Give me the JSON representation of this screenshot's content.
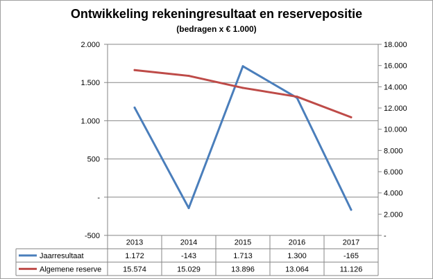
{
  "chart_data": {
    "type": "line",
    "title": "Ontwikkeling rekeningresultaat en reservepositie",
    "subtitle": "(bedragen x € 1.000)",
    "categories": [
      "2013",
      "2014",
      "2015",
      "2016",
      "2017"
    ],
    "series": [
      {
        "name": "Jaarresultaat",
        "axis": "left",
        "color": "#4a7ebb",
        "values": [
          1172,
          -143,
          1713,
          1300,
          -165
        ],
        "labels": [
          "1.172",
          "-143",
          "1.713",
          "1.300",
          "-165"
        ]
      },
      {
        "name": "Algemene reserve",
        "axis": "right",
        "color": "#be4b48",
        "values": [
          15574,
          15029,
          13896,
          13064,
          11126
        ],
        "labels": [
          "15.574",
          "15.029",
          "13.896",
          "13.064",
          "11.126"
        ]
      }
    ],
    "y_left": {
      "range": [
        -500,
        2000
      ],
      "ticks": [
        2000,
        1500,
        1000,
        500,
        0,
        -500
      ],
      "tick_labels": [
        "2.000",
        "1.500",
        "1.000",
        "500",
        "-",
        "-500"
      ]
    },
    "y_right": {
      "range": [
        0,
        18000
      ],
      "ticks": [
        18000,
        16000,
        14000,
        12000,
        10000,
        8000,
        6000,
        4000,
        2000,
        0
      ],
      "tick_labels": [
        "18.000",
        "16.000",
        "14.000",
        "12.000",
        "10.000",
        "8.000",
        "6.000",
        "4.000",
        "2.000",
        "-"
      ]
    },
    "grid": true,
    "legend": "data-table"
  }
}
